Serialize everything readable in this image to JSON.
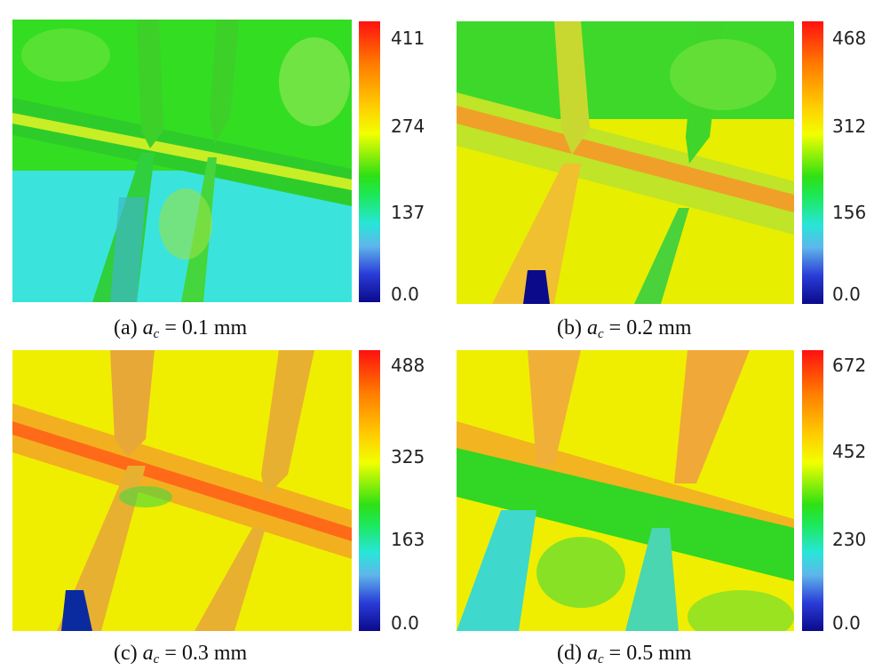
{
  "panels": [
    {
      "id": "a",
      "caption": {
        "prefix": "(a) ",
        "var": "a",
        "sub": "c",
        "suffix": " = 0.1 mm"
      },
      "colorbar_ticks": [
        "411",
        "274",
        "137",
        "0.0"
      ]
    },
    {
      "id": "b",
      "caption": {
        "prefix": "(b) ",
        "var": "a",
        "sub": "c",
        "suffix": " = 0.2 mm"
      },
      "colorbar_ticks": [
        "468",
        "312",
        "156",
        "0.0"
      ]
    },
    {
      "id": "c",
      "caption": {
        "prefix": "(c) ",
        "var": "a",
        "sub": "c",
        "suffix": " = 0.3 mm"
      },
      "colorbar_ticks": [
        "488",
        "325",
        "163",
        "0.0"
      ]
    },
    {
      "id": "d",
      "caption": {
        "prefix": "(d) ",
        "var": "a",
        "sub": "c",
        "suffix": " = 0.5 mm"
      },
      "colorbar_ticks": [
        "672",
        "452",
        "230",
        "0.0"
      ]
    }
  ],
  "colors": {
    "red": "#ff1010",
    "orange": "#ff8c00",
    "yellow": "#f2ee00",
    "green": "#2ee014",
    "cyan": "#35e1d9",
    "blue": "#0a0a8a"
  }
}
